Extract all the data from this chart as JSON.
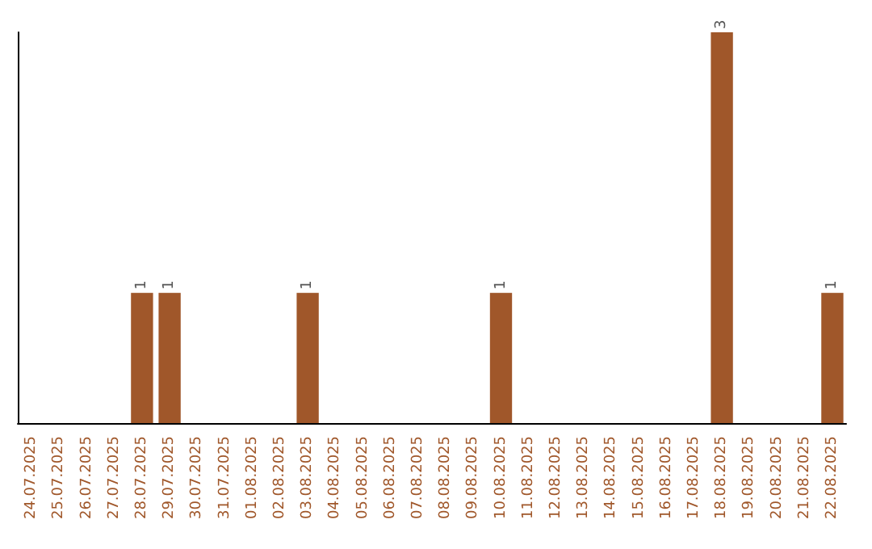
{
  "chart_data": {
    "type": "bar",
    "categories": [
      "24.07.2025",
      "25.07.2025",
      "26.07.2025",
      "27.07.2025",
      "28.07.2025",
      "29.07.2025",
      "30.07.2025",
      "31.07.2025",
      "01.08.2025",
      "02.08.2025",
      "03.08.2025",
      "04.08.2025",
      "05.08.2025",
      "06.08.2025",
      "07.08.2025",
      "08.08.2025",
      "09.08.2025",
      "10.08.2025",
      "11.08.2025",
      "12.08.2025",
      "13.08.2025",
      "14.08.2025",
      "15.08.2025",
      "16.08.2025",
      "17.08.2025",
      "18.08.2025",
      "19.08.2025",
      "20.08.2025",
      "21.08.2025",
      "22.08.2025"
    ],
    "values": [
      0,
      0,
      0,
      0,
      1,
      1,
      0,
      0,
      0,
      0,
      1,
      0,
      0,
      0,
      0,
      0,
      0,
      1,
      0,
      0,
      0,
      0,
      0,
      0,
      0,
      3,
      0,
      0,
      0,
      1
    ],
    "value_labels": [
      null,
      null,
      null,
      null,
      "1",
      "1",
      null,
      null,
      null,
      null,
      "1",
      null,
      null,
      null,
      null,
      null,
      null,
      "1",
      null,
      null,
      null,
      null,
      null,
      null,
      null,
      "3",
      null,
      null,
      null,
      "1"
    ],
    "color": "#a0572a",
    "grid": false
  }
}
